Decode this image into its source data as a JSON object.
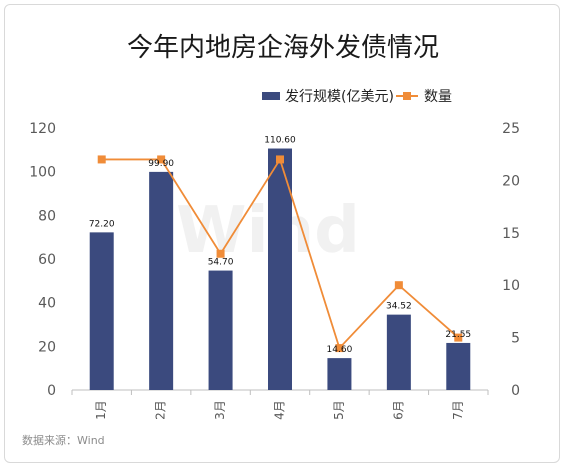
{
  "chart_data": {
    "type": "bar",
    "title": "今年内地房企海外发债情况",
    "categories": [
      "1月",
      "2月",
      "3月",
      "4月",
      "5月",
      "6月",
      "7月"
    ],
    "series": [
      {
        "name": "发行规模(亿美元)",
        "type": "bar",
        "axis": "left",
        "color": "#3b4a7e",
        "values": [
          72.2,
          99.9,
          54.7,
          110.6,
          14.6,
          34.52,
          21.55
        ],
        "labels": [
          "72.20",
          "99.90",
          "54.70",
          "110.60",
          "14.60",
          "34.52",
          "21.55"
        ]
      },
      {
        "name": "数量",
        "type": "line",
        "axis": "right",
        "color": "#f08c38",
        "values": [
          22,
          22,
          13,
          22,
          4,
          10,
          5
        ]
      }
    ],
    "y_left": {
      "min": 0,
      "max": 120,
      "ticks": [
        "0",
        "20",
        "40",
        "60",
        "80",
        "100",
        "120"
      ]
    },
    "y_right": {
      "min": 0,
      "max": 25,
      "ticks": [
        "0",
        "5",
        "10",
        "15",
        "20",
        "25"
      ]
    },
    "legend_position": "top-right",
    "grid": false
  },
  "source": "数据来源：Wind",
  "watermark": "Wind"
}
